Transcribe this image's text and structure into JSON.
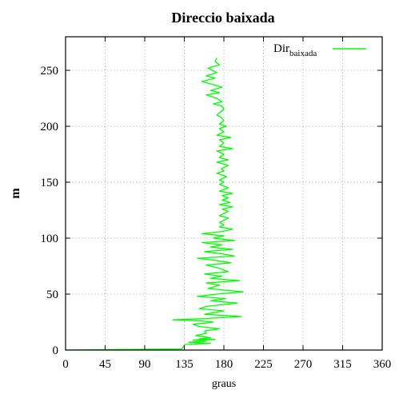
{
  "chart_data": {
    "type": "line",
    "title": "Direccio baixada",
    "xlabel": "graus",
    "ylabel": "m",
    "xlim": [
      0,
      360
    ],
    "ylim": [
      0,
      280
    ],
    "xticks": [
      0,
      45,
      90,
      135,
      180,
      225,
      270,
      315,
      360
    ],
    "yticks": [
      0,
      50,
      100,
      150,
      200,
      250
    ],
    "grid": true,
    "legend_position": "top-right",
    "series": [
      {
        "name": "Dir",
        "name_subscript": "baixada",
        "color": "#00ff00",
        "x": [
          0,
          132,
          134,
          136,
          165,
          140,
          160,
          145,
          170,
          152,
          165,
          148,
          160,
          158,
          175,
          152,
          145,
          168,
          155,
          122,
          155,
          200,
          158,
          180,
          152,
          160,
          195,
          165,
          182,
          150,
          172,
          202,
          162,
          175,
          160,
          198,
          165,
          178,
          158,
          185,
          175,
          160,
          188,
          172,
          150,
          192,
          178,
          158,
          190,
          165,
          178,
          155,
          192,
          168,
          180,
          155,
          178,
          190,
          175,
          180,
          175,
          180,
          185,
          175,
          180,
          185,
          178,
          190,
          175,
          187,
          178,
          185,
          178,
          190,
          175,
          185,
          175,
          180,
          175,
          183,
          172,
          180,
          177,
          185,
          172,
          185,
          175,
          180,
          172,
          190,
          175,
          180,
          175,
          188,
          172,
          180,
          175,
          183,
          175,
          180,
          177,
          172,
          175,
          180,
          178,
          168,
          178,
          172,
          160,
          175,
          165,
          178,
          155,
          170,
          160,
          172,
          162,
          175,
          170,
          172
        ],
        "y": [
          0,
          1,
          3,
          5,
          6,
          7,
          8,
          9,
          9.5,
          10,
          11,
          13,
          15,
          17,
          19,
          21,
          23,
          25,
          26,
          27,
          28,
          30,
          32,
          35,
          37,
          39,
          42,
          44,
          46,
          48,
          50,
          52,
          55,
          58,
          60,
          62,
          64,
          66,
          68,
          70,
          73,
          76,
          78,
          80,
          82,
          84,
          86,
          88,
          90,
          92,
          94,
          96,
          98,
          100,
          102,
          104,
          106,
          108,
          110,
          112,
          114,
          116,
          118,
          120,
          122,
          124,
          126,
          128,
          130,
          132,
          134,
          136,
          138,
          140,
          142,
          145,
          148,
          150,
          152,
          155,
          158,
          160,
          162,
          165,
          168,
          170,
          172,
          175,
          178,
          180,
          182,
          185,
          188,
          190,
          192,
          195,
          198,
          200,
          202,
          205,
          208,
          210,
          212,
          215,
          218,
          220,
          222,
          225,
          228,
          230,
          232,
          235,
          240,
          243,
          245,
          248,
          252,
          255,
          258,
          261
        ]
      }
    ]
  }
}
